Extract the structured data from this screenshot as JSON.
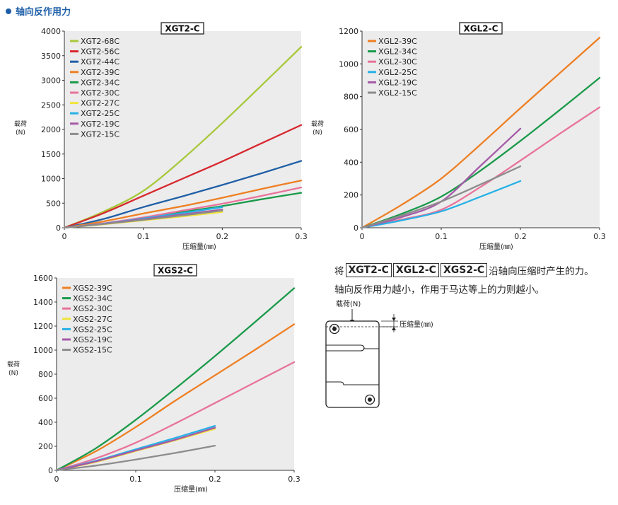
{
  "header": {
    "title": "轴向反作用力"
  },
  "colors": {
    "68C": "#a8c83a",
    "56C": "#d7282f",
    "44C": "#1f5fa6",
    "39C": "#ee7f22",
    "34C": "#1a9a4a",
    "30C": "#e8739b",
    "27C": "#f2e43a",
    "25C": "#27b1e6",
    "19C": "#a45aa6",
    "15C": "#8c8c8c"
  },
  "chart_data": [
    {
      "type": "line",
      "title": "XGT2-C",
      "xlabel": "压缩量(㎜)",
      "ylabel": "载荷\n(N)",
      "xlim": [
        0,
        0.3
      ],
      "ylim": [
        0,
        4000
      ],
      "xticks": [
        "0",
        "0.1",
        "0.2",
        "0.3"
      ],
      "yticks": [
        "0",
        "500",
        "1000",
        "1500",
        "2000",
        "2500",
        "3000",
        "3500",
        "4000"
      ],
      "grid": false,
      "legend": "top-left",
      "series": [
        {
          "name": "XGT2-68C",
          "color_key": "68C",
          "x": [
            0,
            0.05,
            0.1,
            0.15,
            0.2,
            0.25,
            0.3
          ],
          "y": [
            0,
            330,
            750,
            1400,
            2130,
            2900,
            3680
          ]
        },
        {
          "name": "XGT2-56C",
          "color_key": "56C",
          "x": [
            0,
            0.05,
            0.1,
            0.15,
            0.2,
            0.25,
            0.3
          ],
          "y": [
            0,
            300,
            650,
            1000,
            1350,
            1720,
            2090
          ]
        },
        {
          "name": "XGT2-44C",
          "color_key": "44C",
          "x": [
            0,
            0.05,
            0.1,
            0.15,
            0.2,
            0.25,
            0.3
          ],
          "y": [
            0,
            180,
            420,
            640,
            870,
            1110,
            1360
          ]
        },
        {
          "name": "XGT2-39C",
          "color_key": "39C",
          "x": [
            0,
            0.05,
            0.1,
            0.15,
            0.2,
            0.25,
            0.3
          ],
          "y": [
            0,
            130,
            290,
            440,
            610,
            790,
            960
          ]
        },
        {
          "name": "XGT2-34C",
          "color_key": "34C",
          "x": [
            0,
            0.05,
            0.1,
            0.15,
            0.2,
            0.25,
            0.3
          ],
          "y": [
            0,
            80,
            200,
            320,
            440,
            580,
            710
          ]
        },
        {
          "name": "XGT2-30C",
          "color_key": "30C",
          "x": [
            0,
            0.05,
            0.1,
            0.15,
            0.2,
            0.25,
            0.3
          ],
          "y": [
            0,
            90,
            210,
            350,
            490,
            650,
            820
          ]
        },
        {
          "name": "XGT2-27C",
          "color_key": "27C",
          "x": [
            0,
            0.05,
            0.1,
            0.15,
            0.2
          ],
          "y": [
            0,
            70,
            150,
            230,
            320
          ]
        },
        {
          "name": "XGT2-25C",
          "color_key": "25C",
          "x": [
            0,
            0.05,
            0.1,
            0.15,
            0.2
          ],
          "y": [
            0,
            85,
            190,
            300,
            420
          ]
        },
        {
          "name": "XGT2-19C",
          "color_key": "19C",
          "x": [
            0,
            0.05,
            0.1,
            0.15,
            0.2
          ],
          "y": [
            0,
            80,
            175,
            270,
            370
          ]
        },
        {
          "name": "XGT2-15C",
          "color_key": "15C",
          "x": [
            0,
            0.05,
            0.1,
            0.15,
            0.2
          ],
          "y": [
            0,
            75,
            160,
            250,
            350
          ]
        }
      ]
    },
    {
      "type": "line",
      "title": "XGL2-C",
      "xlabel": "压缩量(㎜)",
      "ylabel": "载荷\n(N)",
      "xlim": [
        0,
        0.3
      ],
      "ylim": [
        0,
        1200
      ],
      "xticks": [
        "0",
        "0.1",
        "0.2",
        "0.3"
      ],
      "yticks": [
        "0",
        "200",
        "400",
        "600",
        "800",
        "1000",
        "1200"
      ],
      "grid": false,
      "legend": "top-left",
      "series": [
        {
          "name": "XGL2-39C",
          "color_key": "39C",
          "x": [
            0,
            0.05,
            0.1,
            0.15,
            0.2,
            0.25,
            0.3
          ],
          "y": [
            0,
            140,
            300,
            510,
            730,
            945,
            1160
          ]
        },
        {
          "name": "XGL2-34C",
          "color_key": "34C",
          "x": [
            0,
            0.05,
            0.1,
            0.15,
            0.2,
            0.25,
            0.3
          ],
          "y": [
            0,
            85,
            190,
            350,
            530,
            720,
            915
          ]
        },
        {
          "name": "XGL2-30C",
          "color_key": "30C",
          "x": [
            0,
            0.05,
            0.1,
            0.15,
            0.2,
            0.25,
            0.3
          ],
          "y": [
            0,
            50,
            110,
            250,
            410,
            575,
            735
          ]
        },
        {
          "name": "XGL2-25C",
          "color_key": "25C",
          "x": [
            0,
            0.05,
            0.1,
            0.15,
            0.2
          ],
          "y": [
            0,
            45,
            100,
            190,
            285
          ]
        },
        {
          "name": "XGL2-19C",
          "color_key": "19C",
          "x": [
            0,
            0.05,
            0.1,
            0.15,
            0.2
          ],
          "y": [
            0,
            65,
            160,
            380,
            605
          ]
        },
        {
          "name": "XGL2-15C",
          "color_key": "15C",
          "x": [
            0,
            0.05,
            0.1,
            0.15,
            0.2
          ],
          "y": [
            0,
            75,
            160,
            265,
            375
          ]
        }
      ]
    },
    {
      "type": "line",
      "title": "XGS2-C",
      "xlabel": "压缩量(㎜)",
      "ylabel": "载荷\n(N)",
      "xlim": [
        0,
        0.3
      ],
      "ylim": [
        0,
        1600
      ],
      "xticks": [
        "0",
        "0.1",
        "0.2",
        "0.3"
      ],
      "yticks": [
        "0",
        "200",
        "400",
        "600",
        "800",
        "1000",
        "1200",
        "1400",
        "1600"
      ],
      "grid": false,
      "legend": "top-left",
      "series": [
        {
          "name": "XGS2-39C",
          "color_key": "39C",
          "x": [
            0,
            0.05,
            0.1,
            0.15,
            0.2,
            0.25,
            0.3
          ],
          "y": [
            0,
            160,
            360,
            580,
            790,
            1000,
            1215
          ]
        },
        {
          "name": "XGS2-34C",
          "color_key": "34C",
          "x": [
            0,
            0.05,
            0.1,
            0.15,
            0.2,
            0.25,
            0.3
          ],
          "y": [
            0,
            185,
            420,
            680,
            950,
            1230,
            1515
          ]
        },
        {
          "name": "XGS2-30C",
          "color_key": "30C",
          "x": [
            0,
            0.05,
            0.1,
            0.15,
            0.2,
            0.25,
            0.3
          ],
          "y": [
            0,
            100,
            230,
            390,
            560,
            730,
            900
          ]
        },
        {
          "name": "XGS2-27C",
          "color_key": "27C",
          "x": [
            0,
            0.05,
            0.1,
            0.15,
            0.2
          ],
          "y": [
            0,
            70,
            160,
            250,
            345
          ]
        },
        {
          "name": "XGS2-25C",
          "color_key": "25C",
          "x": [
            0,
            0.05,
            0.1,
            0.15,
            0.2
          ],
          "y": [
            0,
            80,
            175,
            270,
            370
          ]
        },
        {
          "name": "XGS2-19C",
          "color_key": "19C",
          "x": [
            0,
            0.05,
            0.1,
            0.15,
            0.2
          ],
          "y": [
            0,
            75,
            165,
            255,
            355
          ]
        },
        {
          "name": "XGS2-15C",
          "color_key": "15C",
          "x": [
            0,
            0.05,
            0.1,
            0.15,
            0.2
          ],
          "y": [
            0,
            40,
            90,
            145,
            205
          ]
        }
      ]
    }
  ],
  "note": {
    "prefix": "将",
    "tag1": "XGT2-C",
    "tag2": "XGL2-C",
    "tag3": "XGS2-C",
    "suffix": "沿轴向压缩时产生的力。",
    "line2": "轴向反作用力越小，作用于马达等上的力则越小。"
  },
  "diagram": {
    "load_label": "载荷(N)",
    "compression_label": "压缩量(㎜)"
  }
}
